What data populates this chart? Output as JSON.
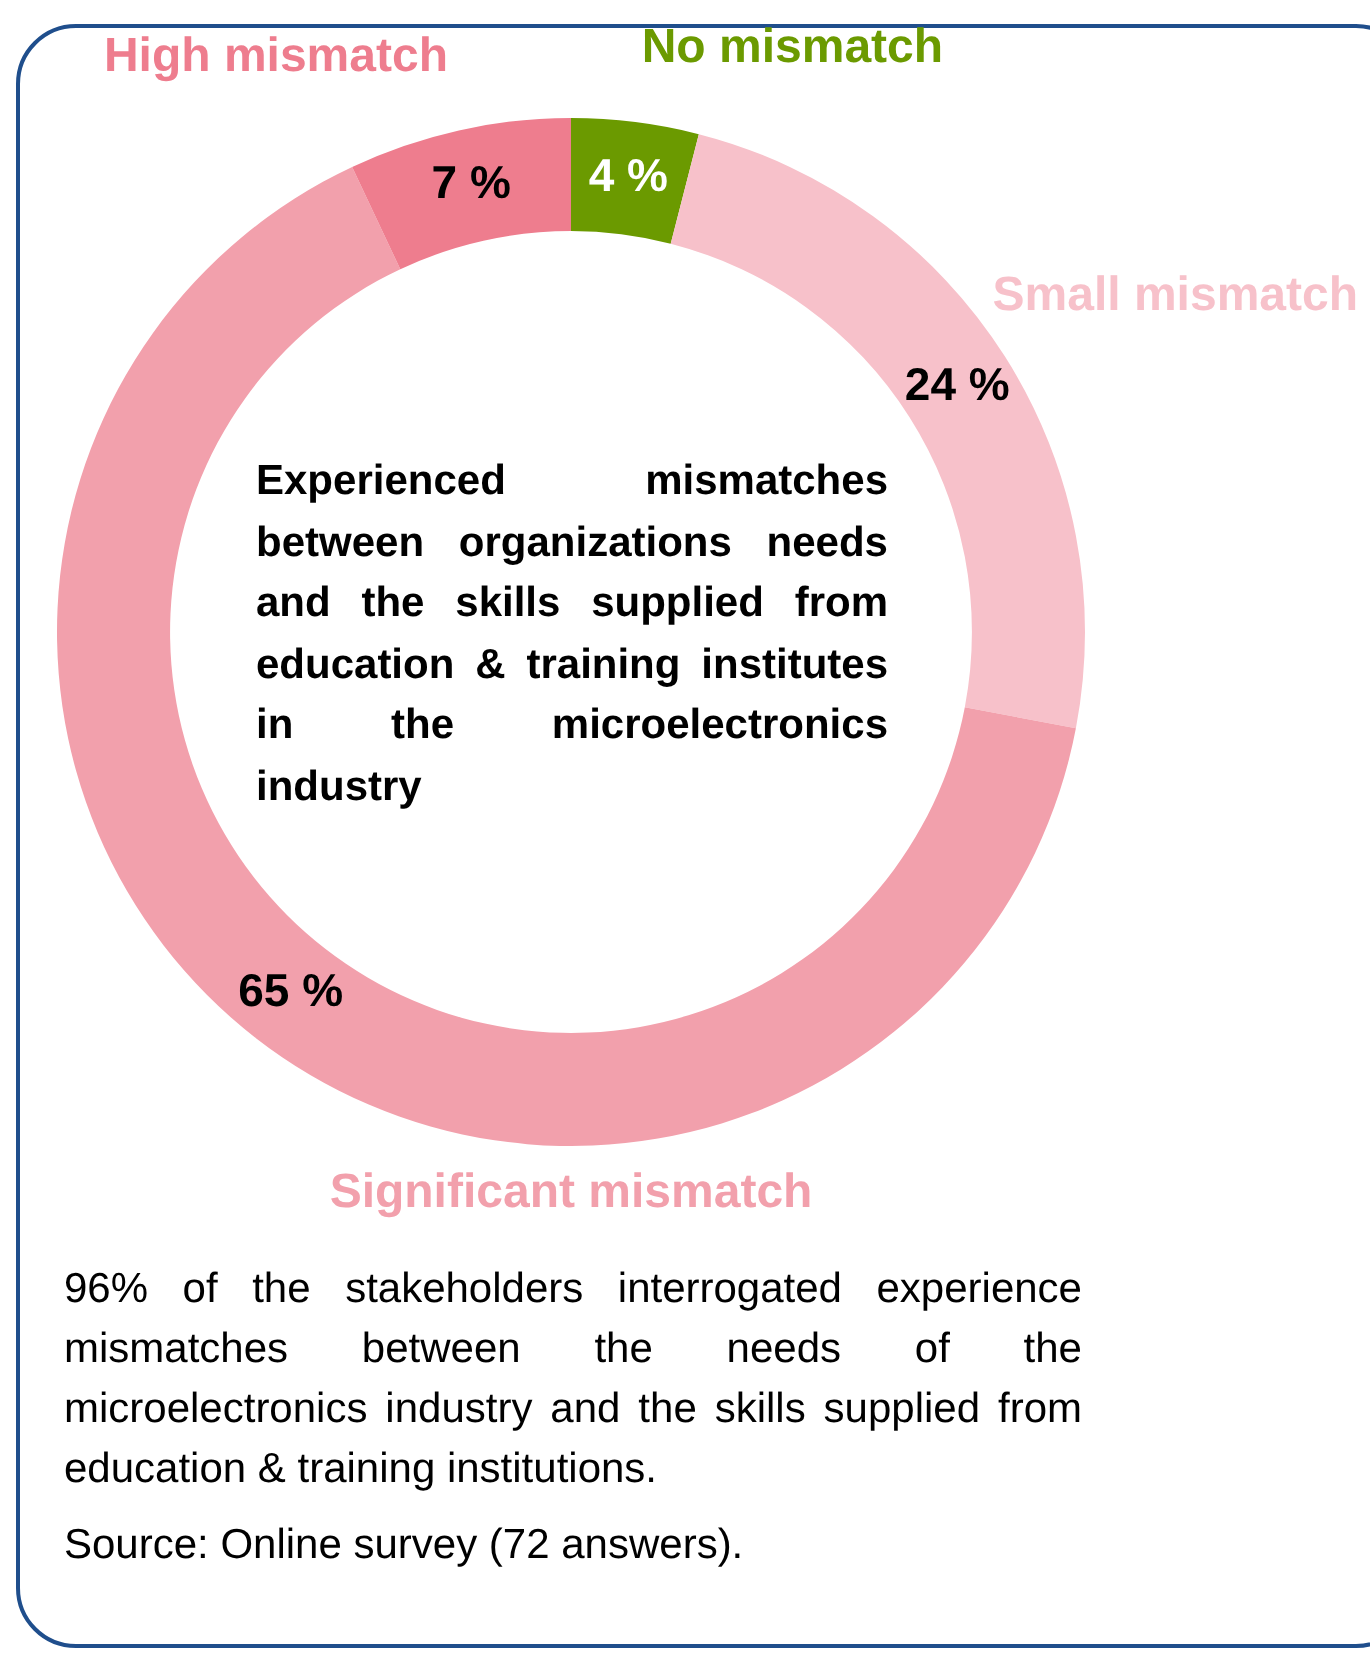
{
  "chart_data": {
    "type": "donut",
    "title": "Experienced mismatches between organizations needs and the skills supplied from education & training institutes in the microelectronics industry",
    "categories": [
      "No mismatch",
      "Small mismatch",
      "Significant mismatch",
      "High mismatch"
    ],
    "values": [
      4,
      24,
      65,
      7
    ],
    "value_labels": [
      "4 %",
      "24 %",
      "65 %",
      "7 %"
    ],
    "colors": [
      "#6b9a00",
      "#f7c1ca",
      "#f2a0ac",
      "#ee7d8e"
    ],
    "annotations": [
      "96% of the stakeholders interrogated experience mismatches between the needs of the microelectronics industry and the skills supplied from education & training institutions.",
      "Source: Online survey (72 answers)."
    ]
  }
}
